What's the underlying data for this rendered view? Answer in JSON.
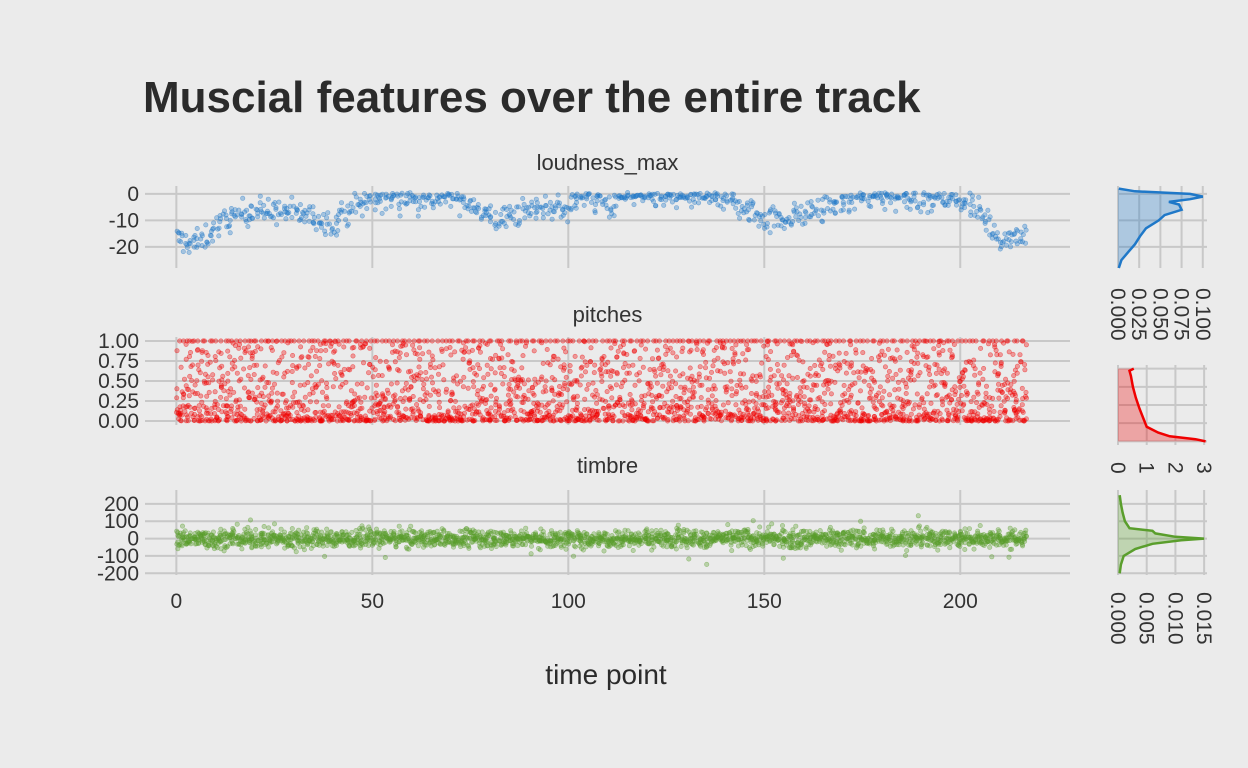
{
  "chart_data": {
    "title": "Muscial features over the entire track",
    "xlabel": "time point",
    "xlim": [
      -8,
      228
    ],
    "x_ticks": [
      0,
      50,
      100,
      150,
      200
    ],
    "x_tick_labels": [
      "0",
      "50",
      "100",
      "150",
      "200"
    ],
    "grid": true,
    "panels": [
      {
        "title": "loudness_max",
        "type": "scatter",
        "color": "#1f78c8",
        "ylim": [
          -28,
          3
        ],
        "y_ticks": [
          0,
          -10,
          -20
        ],
        "y_tick_labels": [
          "0",
          "-10",
          "-20"
        ],
        "x_range": [
          0,
          216
        ],
        "points_per_x": 4,
        "profile": [
          [
            0,
            -17
          ],
          [
            5,
            -19
          ],
          [
            10,
            -13
          ],
          [
            15,
            -8
          ],
          [
            20,
            -6
          ],
          [
            30,
            -7
          ],
          [
            35,
            -9
          ],
          [
            40,
            -11
          ],
          [
            45,
            -5
          ],
          [
            50,
            -2
          ],
          [
            60,
            -1
          ],
          [
            65,
            -2
          ],
          [
            70,
            -1
          ],
          [
            75,
            -3
          ],
          [
            78,
            -7
          ],
          [
            82,
            -10
          ],
          [
            88,
            -7
          ],
          [
            95,
            -5
          ],
          [
            100,
            -5
          ],
          [
            102,
            -2
          ],
          [
            105,
            -1
          ],
          [
            110,
            -4
          ],
          [
            115,
            -1
          ],
          [
            140,
            -1
          ],
          [
            145,
            -6
          ],
          [
            150,
            -9
          ],
          [
            155,
            -9
          ],
          [
            160,
            -8
          ],
          [
            165,
            -5
          ],
          [
            175,
            -1
          ],
          [
            195,
            -1
          ],
          [
            200,
            -2
          ],
          [
            205,
            -7
          ],
          [
            210,
            -17
          ],
          [
            216,
            -15
          ]
        ],
        "noise": 3.5,
        "density": {
          "x_ticks": [
            0.0,
            0.025,
            0.05,
            0.075,
            0.1
          ],
          "x_tick_labels": [
            "0.000",
            "0.025",
            "0.050",
            "0.075",
            "0.100"
          ],
          "xlim": [
            0,
            0.105
          ],
          "curve": [
            [
              -28,
              0.001
            ],
            [
              -25,
              0.004
            ],
            [
              -22,
              0.012
            ],
            [
              -19,
              0.02
            ],
            [
              -16,
              0.026
            ],
            [
              -13,
              0.033
            ],
            [
              -10,
              0.048
            ],
            [
              -8,
              0.055
            ],
            [
              -6,
              0.075
            ],
            [
              -4,
              0.072
            ],
            [
              -3,
              0.06
            ],
            [
              -2,
              0.085
            ],
            [
              -1,
              0.1
            ],
            [
              0,
              0.085
            ],
            [
              1,
              0.02
            ],
            [
              2,
              0.001
            ]
          ]
        }
      },
      {
        "title": "pitches",
        "type": "scatter",
        "color": "#f00000",
        "ylim": [
          -0.05,
          1.05
        ],
        "y_ticks": [
          1.0,
          0.75,
          0.5,
          0.25,
          0.0
        ],
        "y_tick_labels": [
          "1.00",
          "0.75",
          "0.50",
          "0.25",
          "0.00"
        ],
        "x_range": [
          0,
          216
        ],
        "points_per_x": 12,
        "density": {
          "x_ticks": [
            0,
            1,
            2,
            3
          ],
          "x_tick_labels": [
            "0",
            "1",
            "2",
            "3"
          ],
          "xlim": [
            0,
            3.1
          ],
          "curve": [
            [
              0.0,
              3.05
            ],
            [
              0.03,
              2.7
            ],
            [
              0.07,
              1.8
            ],
            [
              0.12,
              1.4
            ],
            [
              0.2,
              1.0
            ],
            [
              0.3,
              0.9
            ],
            [
              0.45,
              0.75
            ],
            [
              0.6,
              0.62
            ],
            [
              0.75,
              0.52
            ],
            [
              0.9,
              0.45
            ],
            [
              0.97,
              0.4
            ],
            [
              1.0,
              0.55
            ]
          ]
        }
      },
      {
        "title": "timbre",
        "type": "scatter",
        "color": "#5a9e2c",
        "ylim": [
          -210,
          280
        ],
        "y_ticks": [
          200,
          100,
          0,
          -100,
          -200
        ],
        "y_tick_labels": [
          "200",
          "100",
          "0",
          "-100",
          "-200"
        ],
        "x_range": [
          0,
          216
        ],
        "points_per_x": 10,
        "noise": 38,
        "density": {
          "x_ticks": [
            0.0,
            0.005,
            0.01,
            0.015
          ],
          "x_tick_labels": [
            "0.000",
            "0.005",
            "0.010",
            "0.015"
          ],
          "xlim": [
            0,
            0.0155
          ],
          "curve": [
            [
              -200,
              0.0003
            ],
            [
              -150,
              0.0005
            ],
            [
              -100,
              0.001
            ],
            [
              -60,
              0.003
            ],
            [
              -30,
              0.006
            ],
            [
              -10,
              0.011
            ],
            [
              0,
              0.015
            ],
            [
              10,
              0.01
            ],
            [
              30,
              0.0065
            ],
            [
              45,
              0.006
            ],
            [
              60,
              0.002
            ],
            [
              100,
              0.0012
            ],
            [
              150,
              0.0008
            ],
            [
              200,
              0.0005
            ],
            [
              250,
              0.0003
            ]
          ]
        }
      }
    ]
  }
}
